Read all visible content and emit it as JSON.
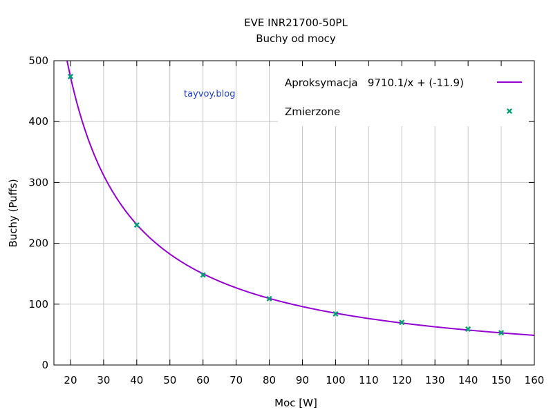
{
  "chart_data": {
    "type": "scatter",
    "title": "EVE INR21700-50PL",
    "subtitle": "Buchy od mocy",
    "xlabel": "Moc [W]",
    "ylabel": "Buchy (Puffs)",
    "xlim": [
      15,
      160
    ],
    "ylim": [
      0,
      500
    ],
    "xticks": [
      20,
      30,
      40,
      50,
      60,
      70,
      80,
      90,
      100,
      110,
      120,
      130,
      140,
      150,
      160
    ],
    "yticks": [
      0,
      100,
      200,
      300,
      400,
      500
    ],
    "grid": true,
    "legend_position": "top-right",
    "watermark": "tayvoy.blog",
    "series": [
      {
        "name": "Aproksymacja   9710.1/x + (-11.9)",
        "kind": "line",
        "color": "#9400d3",
        "function": {
          "a": 9710.1,
          "b": -11.9
        }
      },
      {
        "name": "Zmierzone",
        "kind": "points",
        "color": "#009e73",
        "marker": "x-cross",
        "x": [
          20,
          40,
          60,
          80,
          100,
          120,
          140,
          150
        ],
        "y": [
          474,
          230,
          148,
          109,
          84,
          70,
          59,
          53
        ]
      }
    ]
  }
}
